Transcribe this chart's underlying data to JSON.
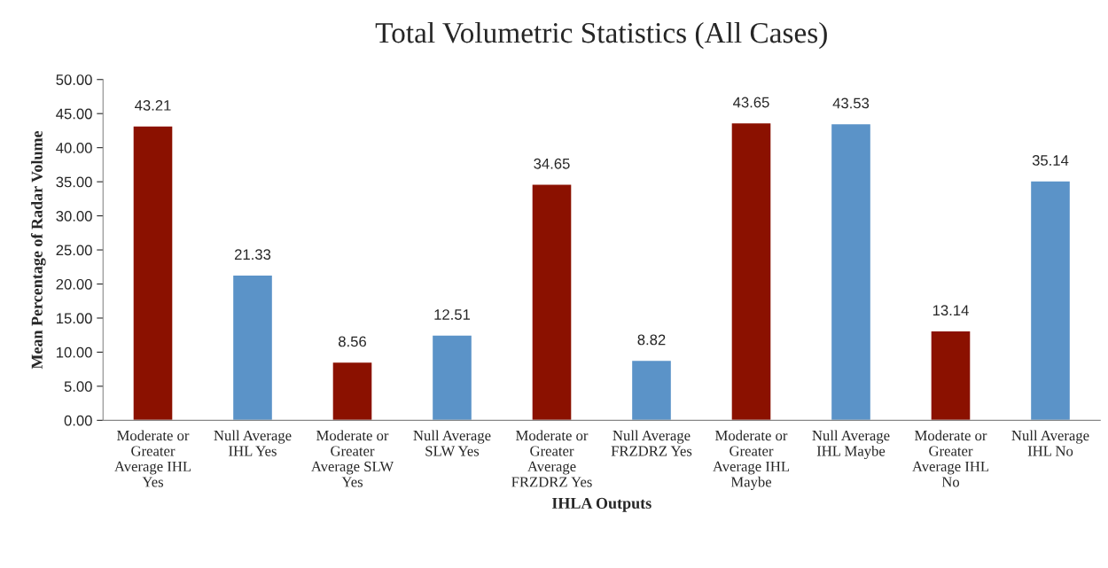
{
  "chart_data": {
    "type": "bar",
    "title": "Total Volumetric Statistics (All Cases)",
    "xlabel": "IHLA Outputs",
    "ylabel": "Mean Percentage of Radar Volume",
    "categories": [
      "Moderate or Greater Average IHL Yes",
      "Null Average IHL Yes",
      "Moderate or Greater Average SLW Yes",
      "Null Average SLW Yes",
      "Moderate or Greater Average FRZDRZ Yes",
      "Null Average FRZDRZ Yes",
      "Moderate or Greater Average IHL Maybe",
      "Null Average IHL Maybe",
      "Moderate or Greater Average IHL No",
      "Null Average IHL No"
    ],
    "values": [
      43.21,
      21.33,
      8.56,
      12.51,
      34.65,
      8.82,
      43.65,
      43.53,
      13.14,
      35.14
    ],
    "colors": [
      "#8b1100",
      "#5b93c8",
      "#8b1100",
      "#5b93c8",
      "#8b1100",
      "#5b93c8",
      "#8b1100",
      "#5b93c8",
      "#8b1100",
      "#5b93c8"
    ],
    "data_labels": true,
    "grid": false,
    "legend": false,
    "ylim": [
      0,
      50
    ],
    "yticks": [
      {
        "value": 0,
        "label": "0.00"
      },
      {
        "value": 5,
        "label": "5.00"
      },
      {
        "value": 10,
        "label": "10.00"
      },
      {
        "value": 15,
        "label": "15.00"
      },
      {
        "value": 20,
        "label": "20.00"
      },
      {
        "value": 25,
        "label": "25.00"
      },
      {
        "value": 30,
        "label": "30.00"
      },
      {
        "value": 35,
        "label": "35.00"
      },
      {
        "value": 40,
        "label": "40.00"
      },
      {
        "value": 45,
        "label": "45.00"
      },
      {
        "value": 50,
        "label": "50.00"
      }
    ]
  }
}
